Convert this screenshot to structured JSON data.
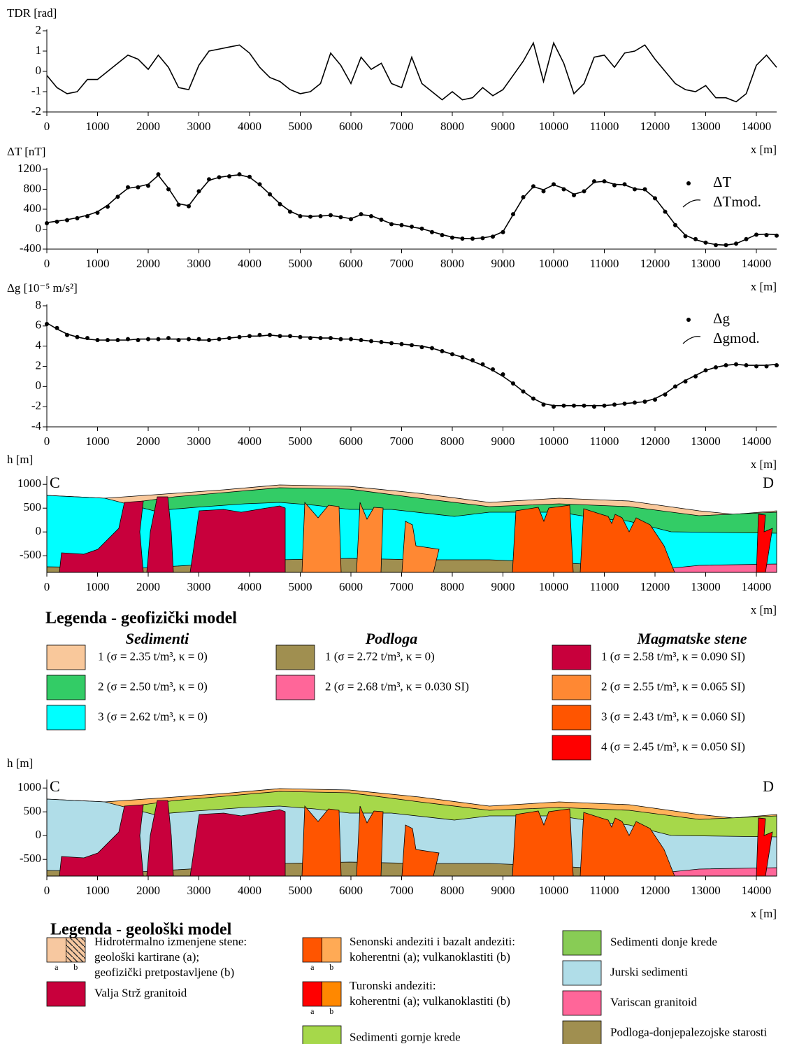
{
  "chart_data": [
    {
      "type": "line",
      "y_label": "TDR [rad]",
      "x_label": "x [m]",
      "x": [
        0,
        200,
        400,
        600,
        800,
        1000,
        1200,
        1400,
        1600,
        1800,
        2000,
        2200,
        2400,
        2600,
        2800,
        3000,
        3200,
        3400,
        3600,
        3800,
        4000,
        4200,
        4400,
        4600,
        4800,
        5000,
        5200,
        5400,
        5600,
        5800,
        6000,
        6200,
        6400,
        6600,
        6800,
        7000,
        7200,
        7400,
        7600,
        7800,
        8000,
        8200,
        8400,
        8600,
        8800,
        9000,
        9200,
        9400,
        9600,
        9800,
        10000,
        10200,
        10400,
        10600,
        10800,
        11000,
        11200,
        11400,
        11600,
        11800,
        12000,
        12200,
        12400,
        12600,
        12800,
        13000,
        13200,
        13400,
        13600,
        13800,
        14000,
        14200,
        14400
      ],
      "series": [
        {
          "style": "line",
          "color": "#000000",
          "values": [
            -0.2,
            -0.8,
            -1.1,
            -1.0,
            -0.4,
            -0.4,
            0,
            0.4,
            0.8,
            0.6,
            0.1,
            0.8,
            0.2,
            -0.8,
            -0.9,
            0.3,
            1.0,
            1.1,
            1.2,
            1.3,
            0.9,
            0.2,
            -0.3,
            -0.5,
            -0.9,
            -1.1,
            -1.0,
            -0.6,
            0.9,
            0.3,
            -0.6,
            0.7,
            0.1,
            0.4,
            -0.6,
            -0.8,
            0.7,
            -0.6,
            -1.0,
            -1.4,
            -1.0,
            -1.4,
            -1.3,
            -0.8,
            -1.2,
            -0.9,
            -0.2,
            0.5,
            1.4,
            -0.5,
            1.4,
            0.4,
            -1.1,
            -0.6,
            0.7,
            0.8,
            0.2,
            0.9,
            1.0,
            1.3,
            0.6,
            0.0,
            -0.6,
            -0.9,
            -1.0,
            -0.7,
            -1.3,
            -1.3,
            -1.5,
            -1.1,
            0.3,
            0.8,
            0.2
          ]
        }
      ],
      "xlim": [
        0,
        14400
      ],
      "xticks": [
        0,
        1000,
        2000,
        3000,
        4000,
        5000,
        6000,
        7000,
        8000,
        9000,
        10000,
        11000,
        12000,
        13000,
        14000
      ],
      "ylim": [
        -2,
        2
      ],
      "yticks": [
        -2,
        -1,
        0,
        1,
        2
      ]
    },
    {
      "type": "line",
      "y_label": "ΔT [nT]",
      "x_label": "x [m]",
      "x": [
        0,
        200,
        400,
        600,
        800,
        1000,
        1200,
        1400,
        1600,
        1800,
        2000,
        2200,
        2400,
        2600,
        2800,
        3000,
        3200,
        3400,
        3600,
        3800,
        4000,
        4200,
        4400,
        4600,
        4800,
        5000,
        5200,
        5400,
        5600,
        5800,
        6000,
        6200,
        6400,
        6600,
        6800,
        7000,
        7200,
        7400,
        7600,
        7800,
        8000,
        8200,
        8400,
        8600,
        8800,
        9000,
        9200,
        9400,
        9600,
        9800,
        10000,
        10200,
        10400,
        10600,
        10800,
        11000,
        11200,
        11400,
        11600,
        11800,
        12000,
        12200,
        12400,
        12600,
        12800,
        13000,
        13200,
        13400,
        13600,
        13800,
        14000,
        14200,
        14400
      ],
      "series": [
        {
          "name": "ΔT",
          "style": "points",
          "color": "#000000",
          "values": [
            120,
            150,
            180,
            220,
            260,
            330,
            450,
            650,
            840,
            840,
            870,
            1100,
            800,
            490,
            460,
            760,
            1000,
            1040,
            1060,
            1100,
            1050,
            900,
            700,
            500,
            350,
            260,
            250,
            260,
            280,
            240,
            200,
            300,
            260,
            190,
            100,
            80,
            50,
            10,
            -60,
            -120,
            -170,
            -190,
            -190,
            -180,
            -150,
            -60,
            300,
            640,
            860,
            760,
            900,
            800,
            680,
            760,
            960,
            960,
            880,
            900,
            800,
            800,
            620,
            350,
            80,
            -140,
            -200,
            -270,
            -320,
            -320,
            -290,
            -200,
            -110,
            -120,
            -130
          ]
        },
        {
          "name": "ΔTmod.",
          "style": "line",
          "color": "#000000",
          "values": [
            130,
            160,
            190,
            230,
            280,
            350,
            480,
            660,
            820,
            850,
            900,
            1080,
            820,
            510,
            470,
            740,
            980,
            1040,
            1070,
            1090,
            1040,
            890,
            700,
            510,
            360,
            270,
            255,
            265,
            275,
            245,
            210,
            290,
            270,
            190,
            110,
            80,
            45,
            10,
            -50,
            -110,
            -160,
            -185,
            -190,
            -175,
            -140,
            -50,
            290,
            630,
            850,
            790,
            890,
            820,
            700,
            760,
            940,
            960,
            900,
            890,
            810,
            790,
            620,
            360,
            90,
            -120,
            -210,
            -270,
            -310,
            -320,
            -290,
            -200,
            -110,
            -100,
            -110
          ]
        }
      ],
      "xlim": [
        0,
        14400
      ],
      "xticks": [
        0,
        1000,
        2000,
        3000,
        4000,
        5000,
        6000,
        7000,
        8000,
        9000,
        10000,
        11000,
        12000,
        13000,
        14000
      ],
      "ylim": [
        -400,
        1200
      ],
      "yticks": [
        -400,
        0,
        400,
        800,
        1200
      ]
    },
    {
      "type": "line",
      "y_label": "Δg [10⁻⁵ m/s²]",
      "x_label": "x [m]",
      "x": [
        0,
        200,
        400,
        600,
        800,
        1000,
        1200,
        1400,
        1600,
        1800,
        2000,
        2200,
        2400,
        2600,
        2800,
        3000,
        3200,
        3400,
        3600,
        3800,
        4000,
        4200,
        4400,
        4600,
        4800,
        5000,
        5200,
        5400,
        5600,
        5800,
        6000,
        6200,
        6400,
        6600,
        6800,
        7000,
        7200,
        7400,
        7600,
        7800,
        8000,
        8200,
        8400,
        8600,
        8800,
        9000,
        9200,
        9400,
        9600,
        9800,
        10000,
        10200,
        10400,
        10600,
        10800,
        11000,
        11200,
        11400,
        11600,
        11800,
        12000,
        12200,
        12400,
        12600,
        12800,
        13000,
        13200,
        13400,
        13600,
        13800,
        14000,
        14200,
        14400
      ],
      "series": [
        {
          "name": "Δg",
          "style": "points",
          "color": "#000000",
          "values": [
            6.2,
            5.8,
            5.1,
            4.9,
            4.8,
            4.6,
            4.6,
            4.6,
            4.7,
            4.6,
            4.7,
            4.7,
            4.8,
            4.6,
            4.7,
            4.7,
            4.6,
            4.7,
            4.8,
            4.9,
            5.0,
            5.1,
            5.1,
            5.0,
            5.0,
            4.9,
            4.8,
            4.8,
            4.8,
            4.7,
            4.7,
            4.6,
            4.5,
            4.4,
            4.3,
            4.2,
            4.1,
            3.9,
            3.8,
            3.5,
            3.2,
            2.9,
            2.6,
            2.2,
            1.7,
            1.2,
            0.3,
            -0.5,
            -1.2,
            -1.8,
            -2.0,
            -1.9,
            -1.9,
            -1.9,
            -2.0,
            -1.9,
            -1.8,
            -1.7,
            -1.6,
            -1.5,
            -1.3,
            -0.8,
            0.0,
            0.5,
            1.0,
            1.6,
            1.9,
            2.1,
            2.2,
            2.1,
            2.0,
            2.0,
            2.1
          ]
        },
        {
          "name": "Δgmod.",
          "style": "line",
          "color": "#000000",
          "values": [
            6.3,
            5.7,
            5.2,
            4.9,
            4.7,
            4.6,
            4.6,
            4.6,
            4.6,
            4.7,
            4.7,
            4.7,
            4.7,
            4.7,
            4.7,
            4.6,
            4.6,
            4.7,
            4.8,
            4.9,
            5.0,
            5.0,
            5.1,
            5.0,
            5.0,
            4.9,
            4.9,
            4.8,
            4.8,
            4.7,
            4.7,
            4.6,
            4.5,
            4.4,
            4.3,
            4.2,
            4.1,
            4.0,
            3.8,
            3.5,
            3.2,
            2.9,
            2.5,
            2.1,
            1.6,
            1.0,
            0.3,
            -0.5,
            -1.2,
            -1.7,
            -1.9,
            -1.9,
            -1.9,
            -1.9,
            -1.9,
            -1.9,
            -1.8,
            -1.7,
            -1.6,
            -1.5,
            -1.2,
            -0.7,
            0.0,
            0.6,
            1.1,
            1.6,
            1.9,
            2.1,
            2.2,
            2.1,
            2.1,
            2.1,
            2.2
          ]
        }
      ],
      "xlim": [
        0,
        14400
      ],
      "xticks": [
        0,
        1000,
        2000,
        3000,
        4000,
        5000,
        6000,
        7000,
        8000,
        9000,
        10000,
        11000,
        12000,
        13000,
        14000
      ],
      "ylim": [
        -4,
        8
      ],
      "yticks": [
        -4,
        -2,
        0,
        2,
        4,
        6,
        8
      ]
    },
    {
      "type": "section",
      "y_label": "h [m]",
      "x_label": "x [m]",
      "left_label": "C",
      "right_label": "D",
      "xlim": [
        0,
        14400
      ],
      "xticks": [
        0,
        1000,
        2000,
        3000,
        4000,
        5000,
        6000,
        7000,
        8000,
        9000,
        10000,
        11000,
        12000,
        13000,
        14000
      ],
      "ylim": [
        -850,
        1150
      ],
      "yticks": [
        -500,
        0,
        500,
        1000
      ],
      "layer_colors": [
        "#f9c89b",
        "#33cc66",
        "#00ffff",
        "#a08f50",
        "#ff6699",
        "#c8003c",
        "#ff8833",
        "#ff5500",
        "#ff0000"
      ],
      "legend": {
        "title": "Legenda - geofizički model",
        "groups": [
          {
            "title": "Sedimenti",
            "items": [
              {
                "lines": [
                  "1 (σ = 2.35 t/m³, κ = 0)"
                ],
                "colors": [
                  "#f9c89b"
                ]
              },
              {
                "lines": [
                  "2 (σ = 2.50 t/m³, κ = 0)"
                ],
                "colors": [
                  "#33cc66"
                ]
              },
              {
                "lines": [
                  "3 (σ = 2.62 t/m³, κ = 0)"
                ],
                "colors": [
                  "#00ffff"
                ]
              }
            ]
          },
          {
            "title": "Podloga",
            "items": [
              {
                "lines": [
                  "1 (σ = 2.72 t/m³, κ = 0)"
                ],
                "colors": [
                  "#a08f50"
                ]
              },
              {
                "lines": [
                  "2 (σ = 2.68 t/m³, κ = 0.030 SI)"
                ],
                "colors": [
                  "#ff6699"
                ]
              }
            ]
          },
          {
            "title": "Magmatske stene",
            "items": [
              {
                "lines": [
                  "1 (σ = 2.58 t/m³, κ = 0.090 SI)"
                ],
                "colors": [
                  "#c8003c"
                ]
              },
              {
                "lines": [
                  "2 (σ = 2.55 t/m³, κ = 0.065 SI)"
                ],
                "colors": [
                  "#ff8833"
                ]
              },
              {
                "lines": [
                  "3 (σ = 2.43 t/m³, κ = 0.060 SI)"
                ],
                "colors": [
                  "#ff5500"
                ]
              },
              {
                "lines": [
                  "4 (σ = 2.45 t/m³, κ = 0.050 SI)"
                ],
                "colors": [
                  "#ff0000"
                ]
              }
            ]
          }
        ]
      }
    },
    {
      "type": "section",
      "y_label": "h [m]",
      "x_label": "x [m]",
      "left_label": "C",
      "right_label": "D",
      "xlim": [
        0,
        14400
      ],
      "xticks": [
        0,
        1000,
        2000,
        3000,
        4000,
        5000,
        6000,
        7000,
        8000,
        9000,
        10000,
        11000,
        12000,
        13000,
        14000
      ],
      "ylim": [
        -850,
        1150
      ],
      "yticks": [
        -500,
        0,
        500,
        1000
      ],
      "layer_colors": [
        "#ffb35a",
        "#a6d84a",
        "#b0dde8",
        "#a08f50",
        "#ff6699",
        "#c8003c",
        "#ff5500",
        "#ff5500",
        "#ff0000"
      ],
      "legend": {
        "title": "Legenda - geološki model",
        "groups": [
          {
            "items": [
              {
                "lines": [
                  "Hidrotermalno izmenjene stene:",
                  "geološki kartirane (a);",
                  "geofizički pretpostavljene (b)"
                ],
                "colors": [
                  "#f7c8a0",
                  "#f7c8a0"
                ],
                "hatch": true,
                "sublabels": [
                  "a",
                  "b"
                ]
              },
              {
                "lines": [
                  "Valja Strž granitoid"
                ],
                "colors": [
                  "#c8003c"
                ]
              }
            ]
          },
          {
            "items": [
              {
                "lines": [
                  "Senonski andeziti i bazalt andeziti:",
                  "koherentni (a); vulkanoklastiti (b)"
                ],
                "colors": [
                  "#ff5500",
                  "#ffaa55"
                ],
                "sublabels": [
                  "a",
                  "b"
                ]
              },
              {
                "lines": [
                  "Turonski andeziti:",
                  "koherentni (a); vulkanoklastiti (b)"
                ],
                "colors": [
                  "#ff0000",
                  "#ff8800"
                ],
                "sublabels": [
                  "a",
                  "b"
                ]
              },
              {
                "lines": [
                  "Sedimenti gornje krede"
                ],
                "colors": [
                  "#a6d84a"
                ]
              }
            ]
          },
          {
            "items": [
              {
                "lines": [
                  "Sedimenti donje krede"
                ],
                "colors": [
                  "#88cc55"
                ]
              },
              {
                "lines": [
                  "Jurski sedimenti"
                ],
                "colors": [
                  "#b0dde8"
                ]
              },
              {
                "lines": [
                  "Variscan granitoid"
                ],
                "colors": [
                  "#ff6699"
                ]
              },
              {
                "lines": [
                  "Podloga-donjepalezojske starosti"
                ],
                "colors": [
                  "#a08f50"
                ]
              }
            ]
          }
        ]
      }
    }
  ]
}
